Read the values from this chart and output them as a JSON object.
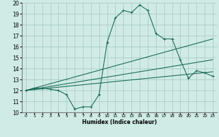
{
  "background_color": "#d0ebe5",
  "grid_color": "#a8cdc6",
  "line_color": "#1a6b5a",
  "xlabel": "Humidex (Indice chaleur)",
  "xlim": [
    -0.5,
    23.5
  ],
  "ylim": [
    10,
    20
  ],
  "xticks": [
    0,
    1,
    2,
    3,
    4,
    5,
    6,
    7,
    8,
    9,
    10,
    11,
    12,
    13,
    14,
    15,
    16,
    17,
    18,
    19,
    20,
    21,
    22,
    23
  ],
  "yticks": [
    10,
    11,
    12,
    13,
    14,
    15,
    16,
    17,
    18,
    19,
    20
  ],
  "series1_x": [
    0,
    1,
    2,
    3,
    4,
    5,
    6,
    7,
    8,
    9,
    10,
    11,
    12,
    13,
    14,
    15,
    16,
    17,
    18,
    19,
    20,
    21,
    22,
    23
  ],
  "series1_y": [
    12.0,
    12.2,
    12.2,
    12.1,
    12.0,
    11.6,
    10.3,
    10.5,
    10.5,
    11.6,
    16.4,
    18.6,
    19.3,
    19.1,
    19.8,
    19.3,
    17.2,
    16.7,
    16.7,
    14.8,
    13.1,
    13.8,
    13.6,
    13.3
  ],
  "series2_x": [
    0,
    23
  ],
  "series2_y": [
    12.0,
    16.7
  ],
  "series3_x": [
    0,
    23
  ],
  "series3_y": [
    12.0,
    13.7
  ],
  "series4_x": [
    0,
    23
  ],
  "series4_y": [
    12.0,
    14.8
  ]
}
